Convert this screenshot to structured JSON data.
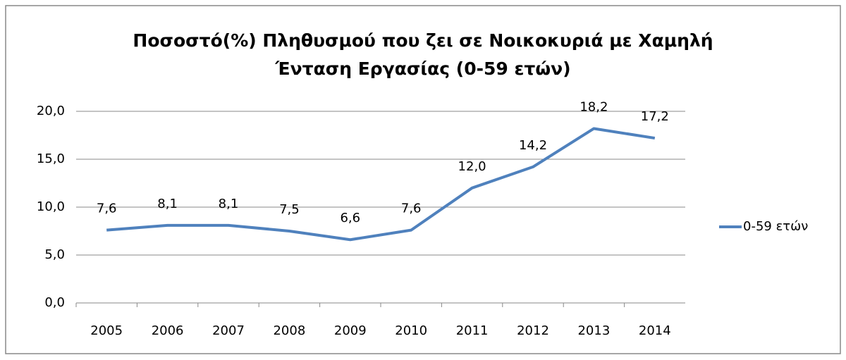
{
  "chart_data": {
    "type": "line",
    "title": "Ποσοστό(%) Πληθυσμού που ζει σε Νοικοκυριά με Χαμηλή Ένταση Εργασίας (0-59 ετών)",
    "categories": [
      "2005",
      "2006",
      "2007",
      "2008",
      "2009",
      "2010",
      "2011",
      "2012",
      "2013",
      "2014"
    ],
    "series": [
      {
        "name": "0-59 ετών",
        "color": "#4f81bd",
        "values": [
          7.6,
          8.1,
          8.1,
          7.5,
          6.6,
          7.6,
          12.0,
          14.2,
          18.2,
          17.2
        ],
        "value_labels": [
          "7,6",
          "8,1",
          "8,1",
          "7,5",
          "6,6",
          "7,6",
          "12,0",
          "14,2",
          "18,2",
          "17,2"
        ]
      }
    ],
    "ylim": [
      0,
      20
    ],
    "yticks": [
      {
        "value": 0,
        "label": "0,0"
      },
      {
        "value": 5,
        "label": "5,0"
      },
      {
        "value": 10,
        "label": "10,0"
      },
      {
        "value": 15,
        "label": "15,0"
      },
      {
        "value": 20,
        "label": "20,0"
      }
    ],
    "grid": true,
    "legend": "right"
  }
}
